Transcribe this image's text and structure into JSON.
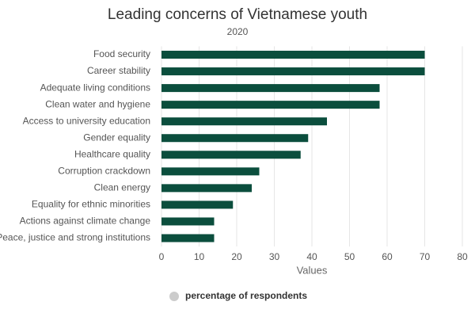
{
  "chart_data": {
    "type": "bar",
    "orientation": "horizontal",
    "title": "Leading concerns of Vietnamese youth",
    "subtitle": "2020",
    "x_label": "Values",
    "categories": [
      "Food security",
      "Career stability",
      "Adequate living conditions",
      "Clean water and hygiene",
      "Access to university education",
      "Gender equality",
      "Healthcare quality",
      "Corruption crackdown",
      "Clean energy",
      "Equality for ethnic minorities",
      "Actions against climate change",
      "Peace, justice and strong institutions"
    ],
    "series": [
      {
        "name": "percentage of respondents",
        "color": "#0b4e3d",
        "legend_color": "#cccccc",
        "values": [
          70,
          70,
          58,
          58,
          44,
          39,
          37,
          26,
          24,
          19,
          14,
          14
        ]
      }
    ],
    "xlim": [
      0,
      80
    ],
    "xticks": [
      0,
      10,
      20,
      30,
      40,
      50,
      60,
      70,
      80
    ],
    "grid": true,
    "legend": "bottom"
  }
}
